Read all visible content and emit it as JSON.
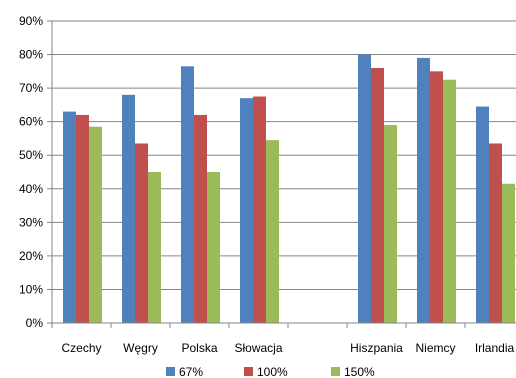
{
  "chart_data": {
    "type": "bar",
    "categories": [
      "Czechy",
      "Węgry",
      "Polska",
      "Słowacja",
      "",
      "Hiszpania",
      "Niemcy",
      "Irlandia"
    ],
    "series": [
      {
        "name": "67%",
        "color": "#4F81BD",
        "values": [
          63,
          68,
          76.5,
          67,
          null,
          80,
          79,
          64.5
        ]
      },
      {
        "name": "100%",
        "color": "#C0504D",
        "values": [
          62,
          53.5,
          62,
          67.5,
          null,
          76,
          75,
          53.5
        ]
      },
      {
        "name": "150%",
        "color": "#9BBB59",
        "values": [
          58.5,
          45,
          45,
          54.5,
          null,
          59,
          72.5,
          41.5
        ]
      }
    ],
    "y_ticks": [
      "0%",
      "10%",
      "20%",
      "30%",
      "40%",
      "50%",
      "60%",
      "70%",
      "80%",
      "90%"
    ],
    "ylim": [
      0,
      90
    ],
    "grid": true,
    "legend_position": "bottom"
  }
}
